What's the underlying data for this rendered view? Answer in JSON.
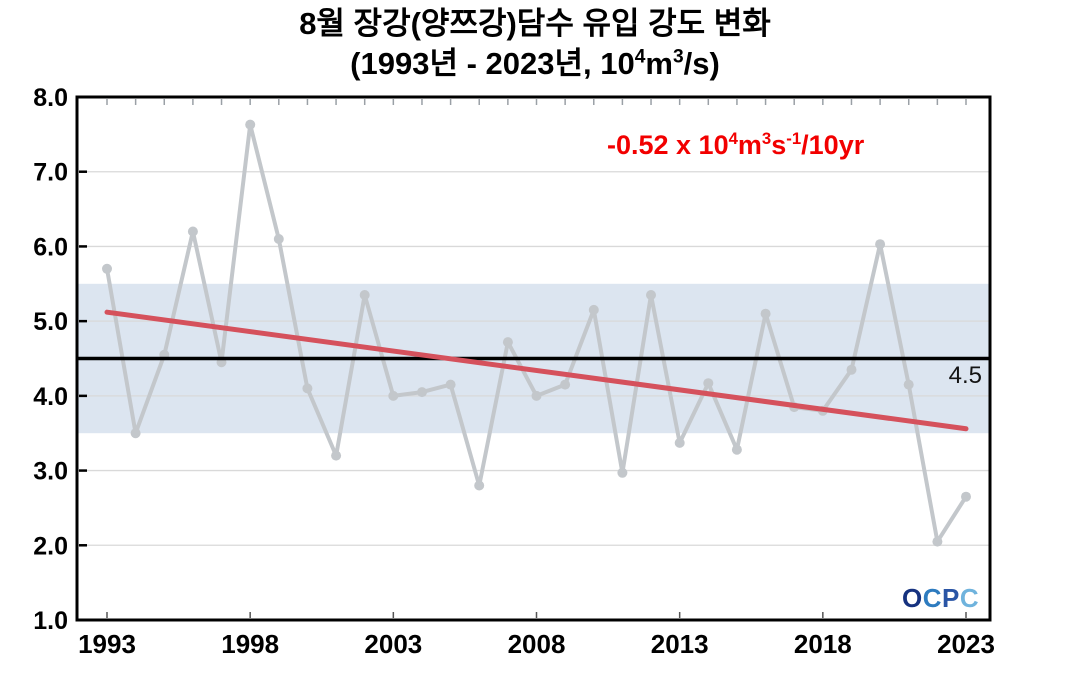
{
  "title": {
    "line1": "8월 장강(양쯔강)담수 유입 강도 변화",
    "line2": {
      "p1": "(1993년 - 2023년, 10",
      "sup1": "4",
      "p2": "m",
      "sup2": "3",
      "p3": "/s)"
    }
  },
  "annotation": {
    "color": "#f20000",
    "p1": "-0.52 x 10",
    "sup1": "4",
    "p2": "m",
    "sup2": "3",
    "p3": "s",
    "sup3": "-1",
    "p4": "/10yr"
  },
  "mean_label": "4.5",
  "logo": {
    "letters": [
      "O",
      "C",
      "P",
      "C"
    ],
    "colors": [
      "#16327f",
      "#2d7bbf",
      "#2a55a5",
      "#6fb3dd"
    ]
  },
  "chart_data": {
    "type": "line",
    "title": "8월 장강(양쯔강)담수 유입 강도 변화 (1993년 - 2023년, 10⁴m³/s)",
    "x": [
      1993,
      1994,
      1995,
      1996,
      1997,
      1998,
      1999,
      2000,
      2001,
      2002,
      2003,
      2004,
      2005,
      2006,
      2007,
      2008,
      2009,
      2010,
      2011,
      2012,
      2013,
      2014,
      2015,
      2016,
      2017,
      2018,
      2019,
      2020,
      2021,
      2022,
      2023
    ],
    "values": [
      5.7,
      3.5,
      4.55,
      6.2,
      4.45,
      7.63,
      6.1,
      4.1,
      3.2,
      5.35,
      4.0,
      4.05,
      4.15,
      2.8,
      4.72,
      4.0,
      4.15,
      5.15,
      2.97,
      5.35,
      3.37,
      4.17,
      3.28,
      5.1,
      3.85,
      3.8,
      4.35,
      6.03,
      4.15,
      2.05,
      2.65
    ],
    "ylim": [
      1.0,
      8.0
    ],
    "ytick_labels": [
      "8.0",
      "7.0",
      "6.0",
      "5.0",
      "4.0",
      "3.0",
      "2.0",
      "1.0"
    ],
    "xtick_labels": [
      1993,
      1998,
      2003,
      2008,
      2013,
      2018,
      2023
    ],
    "grid": "horizontal-only",
    "series_color": "#c3c7cb",
    "gridline_color": "#d9d9d9",
    "mean_line": {
      "value": 4.5,
      "label": "4.5",
      "color": "#000000"
    },
    "band": {
      "low": 3.5,
      "high": 5.5,
      "color": "#dce5f0"
    },
    "trend": {
      "x": [
        1993,
        2023
      ],
      "values": [
        5.12,
        3.56
      ],
      "rate_label": "-0.52 x 10⁴m³s⁻¹/10yr",
      "color": "#d5515c"
    }
  }
}
